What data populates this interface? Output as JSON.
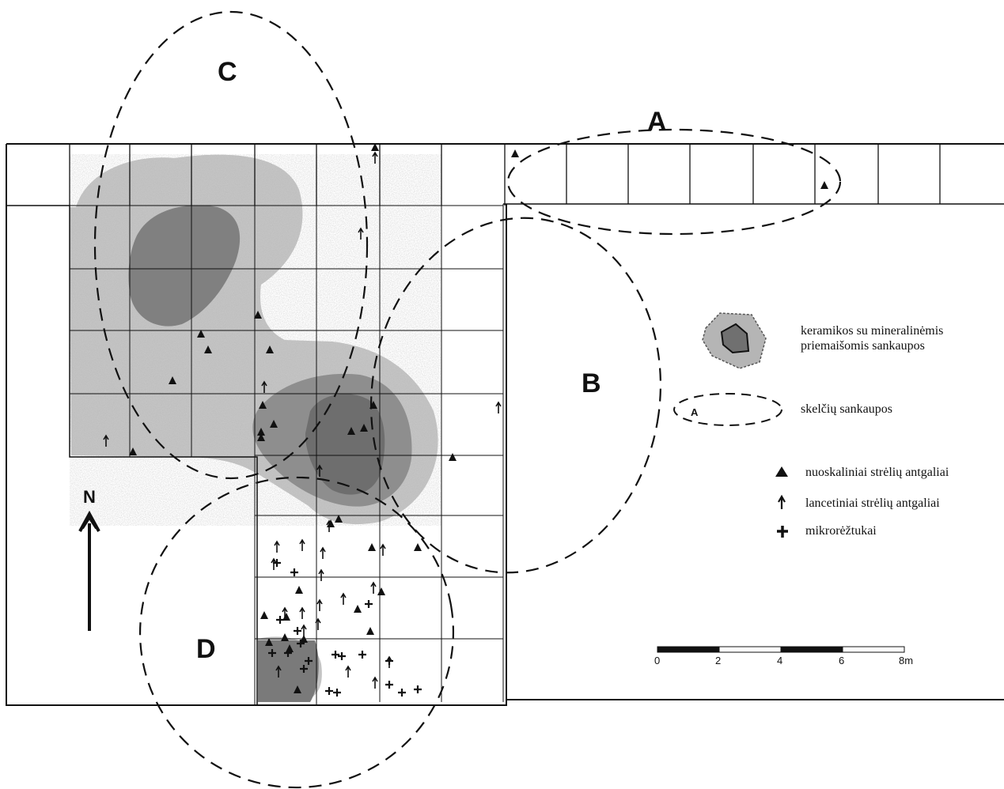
{
  "zones": {
    "A": "A",
    "B": "B",
    "C": "C",
    "D": "D"
  },
  "north": {
    "label": "N"
  },
  "legend": {
    "ceramics": "keramikos su mineralinėmis priemaišomis sankaupos",
    "ceramics_line1": "keramikos su mineralinėmis",
    "ceramics_line2": "priemaišomis sankaupos",
    "flint_label": "A",
    "flint": "skelčių sankaupos",
    "flake_points": "nuoskaliniai strėlių antgaliai",
    "lanceolate_points": "lancetiniai strėlių antgaliai",
    "microliths": "mikrorėžtukai"
  },
  "scale": {
    "ticks": [
      "0",
      "2",
      "4",
      "6",
      "8m"
    ],
    "unit": "m"
  },
  "colors": {
    "light_fill": "#b5b5b5",
    "dark_fill": "#7a7a7a",
    "line": "#111111",
    "background": "#ffffff"
  },
  "symbols": {
    "flake_point": "triangle-icon",
    "lanceolate_point": "arrow-up-icon",
    "microlith": "plus-icon"
  }
}
